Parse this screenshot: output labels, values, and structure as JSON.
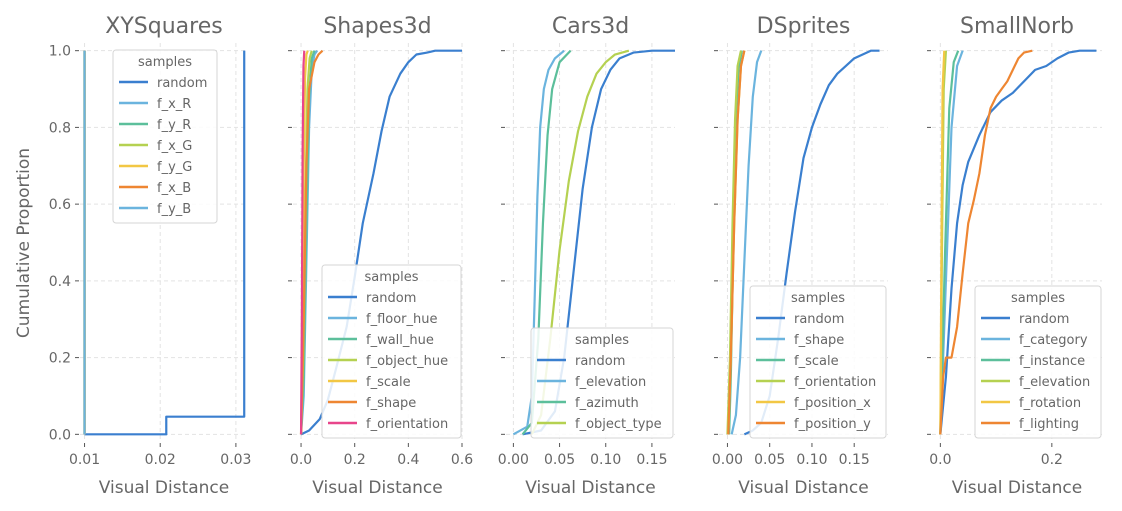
{
  "figure": {
    "ylabel": "Cumulative Proportion",
    "legend_title": "samples"
  },
  "colors": {
    "random": "#3a7fcf",
    "c1": "#6bb4de",
    "c2": "#5cbf9b",
    "c3": "#b5d151",
    "c4": "#f2c744",
    "c5": "#ee8632",
    "c6": "#e8458b",
    "grid": "#e3e3e3",
    "text": "#666666"
  },
  "chart_data": [
    {
      "type": "line",
      "title": "XYSquares",
      "xlabel": "Visual Distance",
      "ylabel": "Cumulative Proportion",
      "xlim": [
        0.0094,
        0.0316
      ],
      "ylim": [
        -0.02,
        1.02
      ],
      "xticks": [
        0.01,
        0.02,
        0.03
      ],
      "xtick_labels": [
        "0.01",
        "0.02",
        "0.03"
      ],
      "yticks": [
        0.0,
        0.2,
        0.4,
        0.6,
        0.8,
        1.0
      ],
      "ytick_labels": [
        "0.0",
        "0.2",
        "0.4",
        "0.6",
        "0.8",
        "1.0"
      ],
      "grid": true,
      "legend_position": "upper-center",
      "series": [
        {
          "name": "random",
          "color_key": "random",
          "step": true,
          "x": [
            0.01,
            0.01,
            0.0208,
            0.0208,
            0.0311,
            0.0311
          ],
          "y": [
            0.0,
            0.0,
            0.0,
            0.046,
            0.046,
            1.0
          ]
        },
        {
          "name": "f_x_R",
          "color_key": "c1",
          "x": [
            0.01,
            0.01
          ],
          "y": [
            0.0,
            1.0
          ]
        },
        {
          "name": "f_y_R",
          "color_key": "c2",
          "x": [
            0.01,
            0.01
          ],
          "y": [
            0.0,
            1.0
          ]
        },
        {
          "name": "f_x_G",
          "color_key": "c3",
          "x": [
            0.01,
            0.01
          ],
          "y": [
            0.0,
            1.0
          ]
        },
        {
          "name": "f_y_G",
          "color_key": "c4",
          "x": [
            0.01,
            0.01
          ],
          "y": [
            0.0,
            1.0
          ]
        },
        {
          "name": "f_x_B",
          "color_key": "c5",
          "x": [
            0.01,
            0.01
          ],
          "y": [
            0.0,
            1.0
          ]
        },
        {
          "name": "f_y_B",
          "color_key": "c1",
          "x": [
            0.01,
            0.01
          ],
          "y": [
            0.0,
            1.0
          ]
        }
      ]
    },
    {
      "type": "line",
      "title": "Shapes3d",
      "xlabel": "Visual Distance",
      "xlim": [
        -0.03,
        0.6
      ],
      "ylim": [
        -0.02,
        1.02
      ],
      "xticks": [
        0.0,
        0.2,
        0.4,
        0.6
      ],
      "xtick_labels": [
        "0.0",
        "0.2",
        "0.4",
        "0.6"
      ],
      "yticks": [
        0.0,
        0.2,
        0.4,
        0.6,
        0.8,
        1.0
      ],
      "grid": true,
      "legend_position": "lower-right",
      "series": [
        {
          "name": "random",
          "color_key": "random",
          "x": [
            0.0,
            0.03,
            0.07,
            0.1,
            0.13,
            0.17,
            0.2,
            0.23,
            0.27,
            0.3,
            0.33,
            0.37,
            0.4,
            0.43,
            0.47,
            0.5,
            0.53,
            0.6
          ],
          "y": [
            0.0,
            0.01,
            0.04,
            0.09,
            0.17,
            0.28,
            0.41,
            0.55,
            0.68,
            0.79,
            0.88,
            0.94,
            0.97,
            0.99,
            0.995,
            1.0,
            1.0,
            1.0
          ]
        },
        {
          "name": "f_floor_hue",
          "color_key": "c1",
          "x": [
            0.0,
            0.01,
            0.02,
            0.03,
            0.04,
            0.05,
            0.06
          ],
          "y": [
            0.0,
            0.1,
            0.45,
            0.8,
            0.95,
            0.99,
            1.0
          ]
        },
        {
          "name": "f_wall_hue",
          "color_key": "c2",
          "x": [
            0.0,
            0.01,
            0.02,
            0.03,
            0.04,
            0.05
          ],
          "y": [
            0.0,
            0.15,
            0.55,
            0.88,
            0.98,
            1.0
          ]
        },
        {
          "name": "f_object_hue",
          "color_key": "c3",
          "x": [
            0.0,
            0.008,
            0.016,
            0.024,
            0.032,
            0.04
          ],
          "y": [
            0.0,
            0.2,
            0.6,
            0.9,
            0.98,
            1.0
          ]
        },
        {
          "name": "f_scale",
          "color_key": "c4",
          "x": [
            0.0,
            0.005,
            0.01,
            0.015,
            0.02,
            0.025
          ],
          "y": [
            0.0,
            0.25,
            0.7,
            0.93,
            0.99,
            1.0
          ]
        },
        {
          "name": "f_shape",
          "color_key": "c5",
          "x": [
            0.0,
            0.01,
            0.02,
            0.03,
            0.05,
            0.065,
            0.08
          ],
          "y": [
            0.0,
            0.3,
            0.7,
            0.9,
            0.97,
            0.99,
            1.0
          ]
        },
        {
          "name": "f_orientation",
          "color_key": "c6",
          "x": [
            0.0,
            0.003,
            0.006,
            0.009,
            0.012
          ],
          "y": [
            0.0,
            0.3,
            0.75,
            0.96,
            1.0
          ]
        }
      ]
    },
    {
      "type": "line",
      "title": "Cars3d",
      "xlabel": "Visual Distance",
      "xlim": [
        -0.008,
        0.175
      ],
      "ylim": [
        -0.02,
        1.02
      ],
      "xticks": [
        0.0,
        0.05,
        0.1,
        0.15
      ],
      "xtick_labels": [
        "0.00",
        "0.05",
        "0.10",
        "0.15"
      ],
      "yticks": [
        0.0,
        0.2,
        0.4,
        0.6,
        0.8,
        1.0
      ],
      "grid": true,
      "legend_position": "lower-right",
      "series": [
        {
          "name": "random",
          "color_key": "random",
          "x": [
            0.01,
            0.03,
            0.045,
            0.055,
            0.065,
            0.075,
            0.085,
            0.095,
            0.105,
            0.115,
            0.13,
            0.15,
            0.175
          ],
          "y": [
            0.0,
            0.01,
            0.06,
            0.2,
            0.42,
            0.64,
            0.8,
            0.9,
            0.95,
            0.98,
            0.995,
            1.0,
            1.0
          ]
        },
        {
          "name": "f_elevation",
          "color_key": "c1",
          "x": [
            0.0,
            0.015,
            0.02,
            0.023,
            0.026,
            0.029,
            0.033,
            0.038,
            0.045,
            0.055
          ],
          "y": [
            0.0,
            0.02,
            0.1,
            0.35,
            0.62,
            0.8,
            0.9,
            0.95,
            0.98,
            1.0
          ]
        },
        {
          "name": "f_azimuth",
          "color_key": "c2",
          "x": [
            0.01,
            0.02,
            0.027,
            0.032,
            0.037,
            0.042,
            0.05,
            0.062
          ],
          "y": [
            0.0,
            0.03,
            0.25,
            0.55,
            0.78,
            0.9,
            0.97,
            1.0
          ]
        },
        {
          "name": "f_object_type",
          "color_key": "c3",
          "x": [
            0.02,
            0.03,
            0.04,
            0.05,
            0.06,
            0.07,
            0.08,
            0.09,
            0.1,
            0.11,
            0.125
          ],
          "y": [
            0.0,
            0.05,
            0.25,
            0.48,
            0.66,
            0.79,
            0.88,
            0.94,
            0.97,
            0.99,
            1.0
          ]
        }
      ]
    },
    {
      "type": "line",
      "title": "DSprites",
      "xlabel": "Visual Distance",
      "xlim": [
        -0.01,
        0.19
      ],
      "ylim": [
        -0.02,
        1.02
      ],
      "xticks": [
        0.0,
        0.05,
        0.1,
        0.15
      ],
      "xtick_labels": [
        "0.00",
        "0.05",
        "0.10",
        "0.15"
      ],
      "yticks": [
        0.0,
        0.2,
        0.4,
        0.6,
        0.8,
        1.0
      ],
      "grid": true,
      "legend_position": "lower-right",
      "series": [
        {
          "name": "random",
          "color_key": "random",
          "x": [
            0.02,
            0.03,
            0.04,
            0.05,
            0.06,
            0.07,
            0.08,
            0.09,
            0.1,
            0.11,
            0.12,
            0.13,
            0.14,
            0.15,
            0.16,
            0.17,
            0.18
          ],
          "y": [
            0.0,
            0.01,
            0.03,
            0.1,
            0.25,
            0.42,
            0.58,
            0.72,
            0.8,
            0.86,
            0.91,
            0.94,
            0.96,
            0.98,
            0.99,
            1.0,
            1.0
          ]
        },
        {
          "name": "f_shape",
          "color_key": "c1",
          "x": [
            0.005,
            0.01,
            0.015,
            0.02,
            0.025,
            0.03,
            0.035,
            0.04
          ],
          "y": [
            0.0,
            0.05,
            0.2,
            0.45,
            0.7,
            0.88,
            0.97,
            1.0
          ]
        },
        {
          "name": "f_scale",
          "color_key": "c2",
          "x": [
            0.002,
            0.004,
            0.007,
            0.01,
            0.013,
            0.017
          ],
          "y": [
            0.0,
            0.15,
            0.5,
            0.8,
            0.95,
            1.0
          ]
        },
        {
          "name": "f_orientation",
          "color_key": "c3",
          "x": [
            0.0,
            0.003,
            0.006,
            0.009,
            0.012,
            0.016
          ],
          "y": [
            0.0,
            0.2,
            0.55,
            0.82,
            0.96,
            1.0
          ]
        },
        {
          "name": "f_position_x",
          "color_key": "c4",
          "x": [
            0.001,
            0.004,
            0.008,
            0.012,
            0.016,
            0.02
          ],
          "y": [
            0.0,
            0.2,
            0.55,
            0.82,
            0.96,
            1.0
          ]
        },
        {
          "name": "f_position_y",
          "color_key": "c5",
          "x": [
            0.001,
            0.004,
            0.008,
            0.012,
            0.016,
            0.02
          ],
          "y": [
            0.0,
            0.2,
            0.55,
            0.82,
            0.96,
            1.0
          ]
        }
      ]
    },
    {
      "type": "line",
      "title": "SmallNorb",
      "xlabel": "Visual Distance",
      "xlim": [
        -0.015,
        0.29
      ],
      "ylim": [
        -0.02,
        1.02
      ],
      "xticks": [
        0.0,
        0.2
      ],
      "xtick_labels": [
        "0.0",
        "0.2"
      ],
      "yticks": [
        0.0,
        0.2,
        0.4,
        0.6,
        0.8,
        1.0
      ],
      "grid": true,
      "legend_position": "lower-right",
      "series": [
        {
          "name": "random",
          "color_key": "random",
          "x": [
            0.0,
            0.01,
            0.02,
            0.03,
            0.04,
            0.05,
            0.07,
            0.09,
            0.11,
            0.13,
            0.15,
            0.17,
            0.19,
            0.21,
            0.23,
            0.25,
            0.28
          ],
          "y": [
            0.0,
            0.15,
            0.38,
            0.55,
            0.65,
            0.71,
            0.78,
            0.84,
            0.87,
            0.89,
            0.92,
            0.95,
            0.96,
            0.98,
            0.995,
            1.0,
            1.0
          ]
        },
        {
          "name": "f_category",
          "color_key": "c1",
          "x": [
            0.0,
            0.01,
            0.02,
            0.03,
            0.04
          ],
          "y": [
            0.0,
            0.4,
            0.8,
            0.96,
            1.0
          ]
        },
        {
          "name": "f_instance",
          "color_key": "c2",
          "x": [
            0.0,
            0.008,
            0.016,
            0.024,
            0.032
          ],
          "y": [
            0.0,
            0.45,
            0.85,
            0.97,
            1.0
          ]
        },
        {
          "name": "f_elevation",
          "color_key": "c3",
          "x": [
            0.0,
            0.003,
            0.006,
            0.01
          ],
          "y": [
            0.0,
            0.5,
            0.9,
            1.0
          ]
        },
        {
          "name": "f_rotation",
          "color_key": "c4",
          "x": [
            0.0,
            0.002,
            0.004,
            0.007
          ],
          "y": [
            0.0,
            0.5,
            0.9,
            1.0
          ]
        },
        {
          "name": "f_lighting",
          "color_key": "c5",
          "x": [
            0.0,
            0.005,
            0.01,
            0.02,
            0.03,
            0.04,
            0.05,
            0.06,
            0.07,
            0.08,
            0.09,
            0.1,
            0.11,
            0.12,
            0.13,
            0.14,
            0.15,
            0.165
          ],
          "y": [
            0.0,
            0.15,
            0.2,
            0.2,
            0.28,
            0.42,
            0.55,
            0.61,
            0.68,
            0.78,
            0.85,
            0.88,
            0.9,
            0.92,
            0.95,
            0.98,
            0.995,
            1.0
          ]
        }
      ]
    }
  ]
}
